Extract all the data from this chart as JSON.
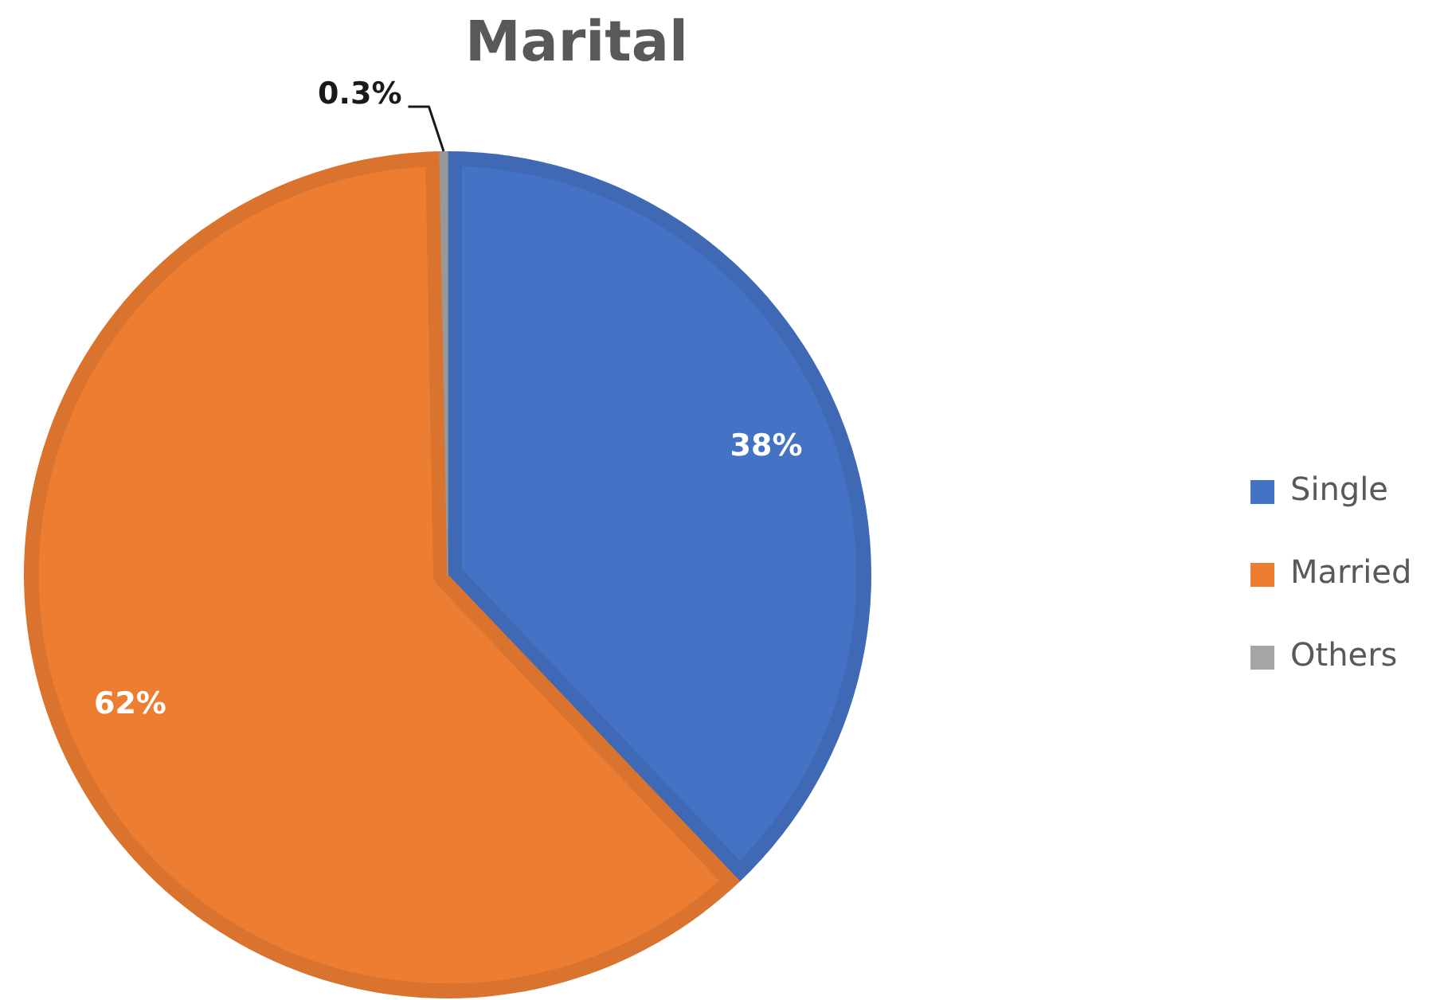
{
  "chart_data": {
    "type": "pie",
    "title": "Marital",
    "categories": [
      "Single",
      "Married",
      "Others"
    ],
    "values": [
      38,
      62,
      0.3
    ],
    "colors": [
      "#4472c4",
      "#ed7d31",
      "#a5a5a5"
    ],
    "value_labels": [
      "38%",
      "62%",
      "0.3%"
    ],
    "legend": "right"
  }
}
